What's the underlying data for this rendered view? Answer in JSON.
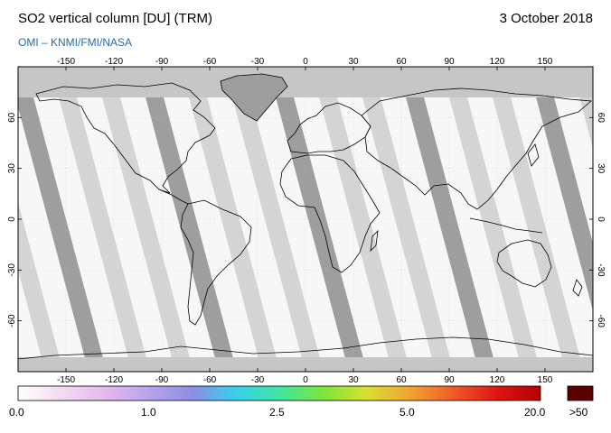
{
  "header": {
    "title": "SO2 vertical column [DU] (TRM)",
    "date": "3 October 2018",
    "credit": "OMI  –  KNMI/FMI/NASA"
  },
  "map": {
    "lon_ticks": [
      "-150",
      "-120",
      "-90",
      "-60",
      "-30",
      "0",
      "30",
      "60",
      "90",
      "120",
      "150"
    ],
    "lat_ticks": [
      "60",
      "30",
      "0",
      "-30",
      "-60"
    ],
    "lon_range": [
      -180,
      180
    ],
    "lat_range": [
      -90,
      90
    ],
    "colors": {
      "no_data": "#c6c6c6",
      "overpass_swath": "#9e9e9e",
      "swath_stripe": "#d4d4d4",
      "ocean_background": "#f7f7f7",
      "coastline": "#000000"
    }
  },
  "colorbar": {
    "labels": [
      "0.0",
      "1.0",
      "2.5",
      "5.0",
      "20.0"
    ],
    "overflow_label": ">50",
    "overflow_color": "#5c0000",
    "stops": [
      "#ffffff",
      "#f2dcf2",
      "#e6b8ec",
      "#b9a4ec",
      "#8b8ee6",
      "#36d0ee",
      "#3ee6a0",
      "#7ce63a",
      "#d8e030",
      "#f2a430",
      "#f05a28",
      "#e01414",
      "#b40000"
    ]
  }
}
